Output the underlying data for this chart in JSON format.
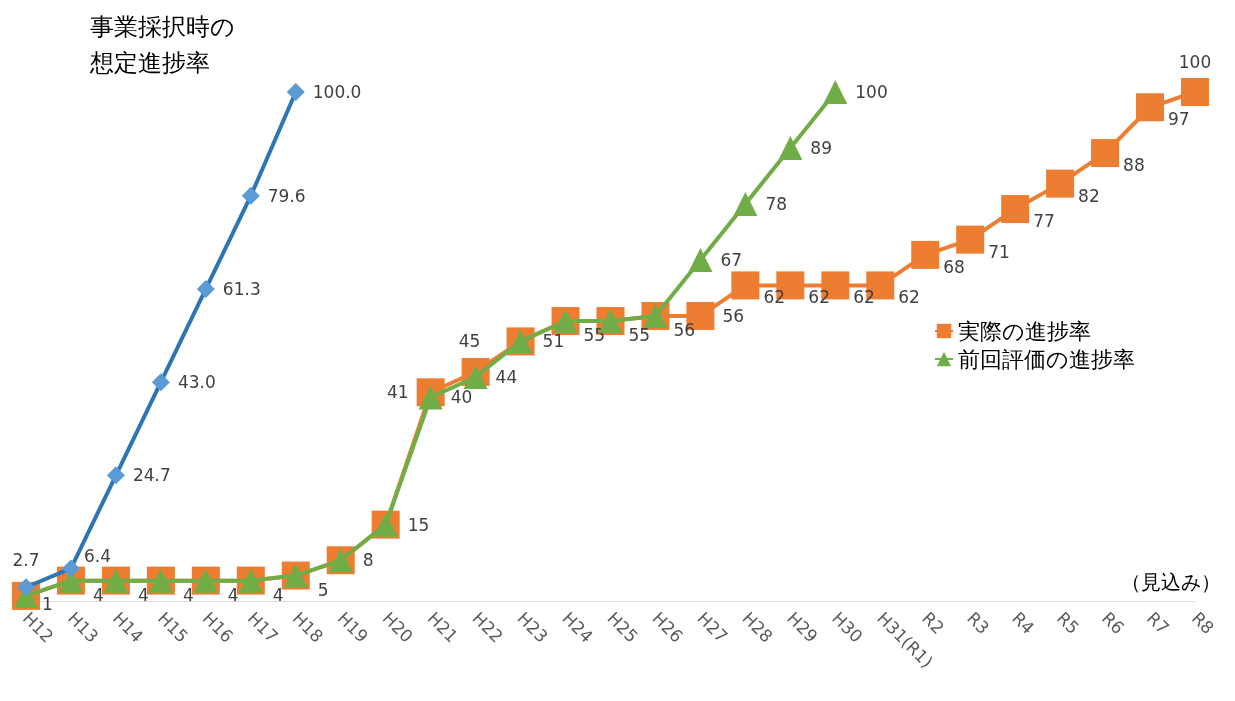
{
  "chart_data": {
    "type": "line",
    "categories": [
      "H12",
      "H13",
      "H14",
      "H15",
      "H16",
      "H17",
      "H18",
      "H19",
      "H20",
      "H21",
      "H22",
      "H23",
      "H24",
      "H25",
      "H26",
      "H27",
      "H28",
      "H29",
      "H30",
      "H31(R1)",
      "R2",
      "R3",
      "R4",
      "R5",
      "R6",
      "R7",
      "R8"
    ],
    "series": [
      {
        "name": "事業採択時の想定進捗率",
        "color": "#2e75b6",
        "marker": "diamond",
        "values": [
          2.7,
          6.4,
          24.7,
          43.0,
          61.3,
          79.6,
          100.0,
          null,
          null,
          null,
          null,
          null,
          null,
          null,
          null,
          null,
          null,
          null,
          null,
          null,
          null,
          null,
          null,
          null,
          null,
          null,
          null
        ],
        "value_labels": [
          "2.7",
          "6.4",
          "24.7",
          "43.0",
          "61.3",
          "79.6",
          "100.0",
          null,
          null,
          null,
          null,
          null,
          null,
          null,
          null,
          null,
          null,
          null,
          null,
          null,
          null,
          null,
          null,
          null,
          null,
          null,
          null
        ]
      },
      {
        "name": "実際の進捗率",
        "color": "#ed7d31",
        "marker": "square",
        "values": [
          1,
          4,
          4,
          4,
          4,
          4,
          5,
          8,
          15,
          41,
          45,
          51,
          55,
          55,
          56,
          56,
          62,
          62,
          62,
          62,
          68,
          71,
          77,
          82,
          88,
          97,
          100
        ],
        "value_labels": [
          "1",
          "4",
          "4",
          "4",
          "4",
          "4",
          "5",
          "8",
          "15",
          "41",
          "45",
          "51",
          "55",
          "55",
          "56",
          "56",
          "62",
          "62",
          "62",
          "62",
          "68",
          "71",
          "77",
          "82",
          "88",
          "97",
          "100"
        ]
      },
      {
        "name": "前回評価の進捗率",
        "color": "#70ad47",
        "marker": "triangle",
        "values": [
          1,
          4,
          4,
          4,
          4,
          4,
          5,
          8,
          15,
          40,
          44,
          51,
          55,
          55,
          56,
          67,
          78,
          89,
          100,
          null,
          null,
          null,
          null,
          null,
          null,
          null,
          null
        ],
        "value_labels": [
          null,
          null,
          null,
          null,
          null,
          null,
          null,
          null,
          null,
          "40",
          "44",
          null,
          null,
          null,
          null,
          "67",
          "78",
          "89",
          "100",
          null,
          null,
          null,
          null,
          null,
          null,
          null,
          null
        ]
      }
    ],
    "annotations": [
      "（見込み）"
    ],
    "legend": "right",
    "grid": false
  }
}
